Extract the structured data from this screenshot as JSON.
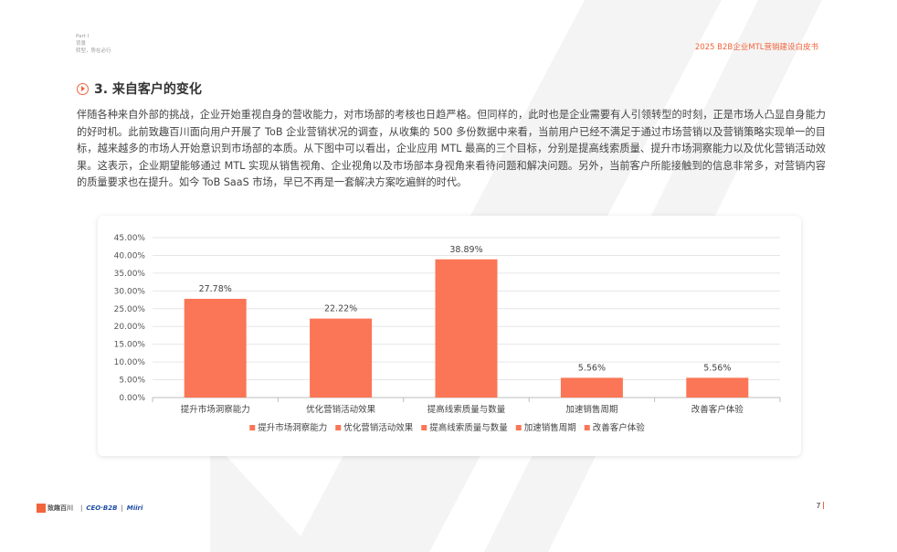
{
  "header": {
    "part_label": "Part I",
    "part_sub1": "背景",
    "part_sub2": "转型，势在必行",
    "doc_title": "2025 B2B企业MTL营销建设白皮书"
  },
  "section": {
    "title": "3. 来自客户的变化",
    "icon": "play-circle-icon"
  },
  "body_text": "伴随各种来自外部的挑战，企业开始重视自身的营收能力，对市场部的考核也日趋严格。但同样的，此时也是企业需要有人引领转型的时刻，正是市场人凸显自身能力的好时机。此前致趣百川面向用户开展了 ToB 企业营销状况的调查，从收集的 500 多份数据中来看，当前用户已经不满足于通过市场营销以及营销策略实现单一的目标，越来越多的市场人开始意识到市场部的本质。从下图中可以看出，企业应用 MTL 最高的三个目标，分别是提高线索质量、提升市场洞察能力以及优化营销活动效果。这表示，企业期望能够通过 MTL 实现从销售视角、企业视角以及市场部本身视角来看待问题和解决问题。另外，当前客户所能接触到的信息非常多，对营销内容的质量要求也在提升。如今 ToB SaaS 市场，早已不再是一套解决方案吃遍鲜的时代。",
  "chart_data": {
    "type": "bar",
    "categories": [
      "提升市场洞察能力",
      "优化营销活动效果",
      "提高线索质量与数量",
      "加速销售周期",
      "改善客户体验"
    ],
    "values": [
      27.78,
      22.22,
      38.89,
      5.56,
      5.56
    ],
    "value_labels": [
      "27.78%",
      "22.22%",
      "38.89%",
      "5.56%",
      "5.56%"
    ],
    "ylim": [
      0,
      45
    ],
    "yticks": [
      "0.00%",
      "5.00%",
      "10.00%",
      "15.00%",
      "20.00%",
      "25.00%",
      "30.00%",
      "35.00%",
      "40.00%",
      "45.00%"
    ],
    "grid": true,
    "legend_position": "bottom",
    "legend": [
      "提升市场洞察能力",
      "优化营销活动效果",
      "提高线索质量与数量",
      "加速销售周期",
      "改善客户体验"
    ],
    "bar_color": "#fa7656",
    "title": "",
    "xlabel": "",
    "ylabel": ""
  },
  "footer": {
    "logo1": "致趣百川",
    "logo2": "CEO·B2B",
    "logo3": "Miiri",
    "page_number": "7"
  }
}
